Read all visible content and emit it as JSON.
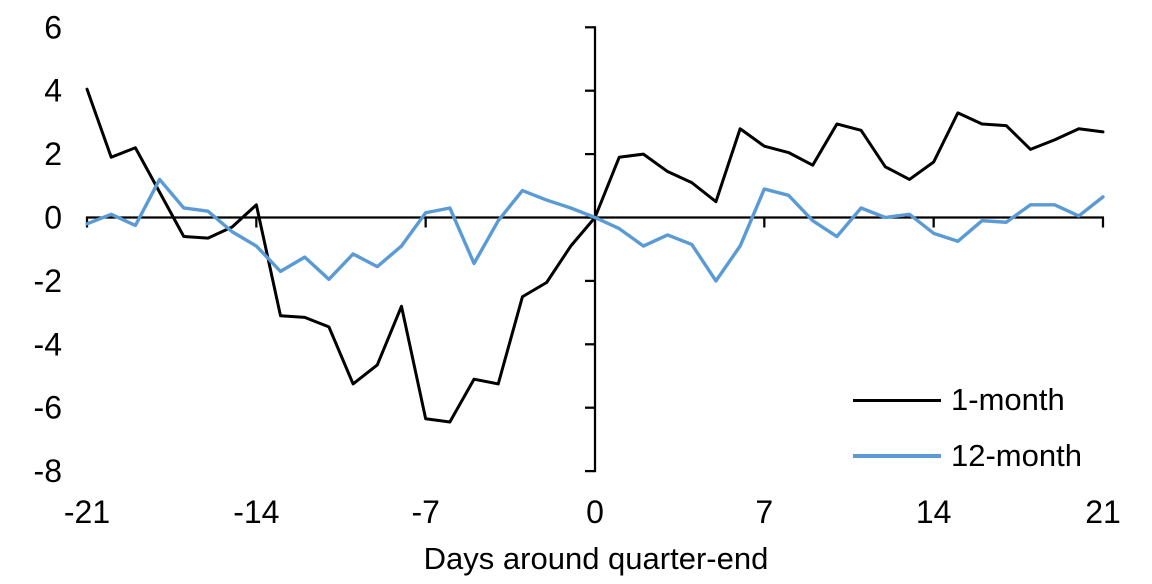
{
  "chart_data": {
    "type": "line",
    "xlabel": "Days around quarter-end",
    "ylabel": "",
    "xlim": [
      -21,
      21
    ],
    "ylim": [
      -8,
      6
    ],
    "x_ticks": [
      -21,
      -14,
      -7,
      0,
      7,
      14,
      21
    ],
    "y_ticks": [
      6,
      4,
      2,
      0,
      -2,
      -4,
      -6,
      -8
    ],
    "grid": false,
    "legend_position": "bottom-right",
    "axis_color": "#000000",
    "x": [
      -21,
      -20,
      -19,
      -18,
      -17,
      -16,
      -15,
      -14,
      -13,
      -12,
      -11,
      -10,
      -9,
      -8,
      -7,
      -6,
      -5,
      -4,
      -3,
      -2,
      -1,
      0,
      1,
      2,
      3,
      4,
      5,
      6,
      7,
      8,
      9,
      10,
      11,
      12,
      13,
      14,
      15,
      16,
      17,
      18,
      19,
      20,
      21
    ],
    "series": [
      {
        "name": "1-month",
        "color": "#000000",
        "stroke_width": 3,
        "values": [
          4.05,
          1.9,
          2.2,
          0.8,
          -0.6,
          -0.65,
          -0.3,
          0.4,
          -3.1,
          -3.15,
          -3.45,
          -5.25,
          -4.65,
          -2.8,
          -6.35,
          -6.45,
          -5.1,
          -5.25,
          -2.5,
          -2.05,
          -0.9,
          0,
          1.9,
          2.0,
          1.45,
          1.1,
          0.5,
          2.8,
          2.25,
          2.05,
          1.65,
          2.95,
          2.75,
          1.6,
          1.2,
          1.75,
          3.3,
          2.95,
          2.9,
          2.15,
          2.45,
          2.8,
          2.7
        ]
      },
      {
        "name": "12-month",
        "color": "#5B9BD5",
        "stroke_width": 3.4,
        "values": [
          -0.2,
          0.1,
          -0.25,
          1.2,
          0.3,
          0.2,
          -0.45,
          -0.9,
          -1.7,
          -1.25,
          -1.95,
          -1.15,
          -1.55,
          -0.9,
          0.15,
          0.3,
          -1.45,
          -0.1,
          0.85,
          0.55,
          0.3,
          0,
          -0.35,
          -0.9,
          -0.55,
          -0.85,
          -2.0,
          -0.9,
          0.9,
          0.7,
          -0.1,
          -0.6,
          0.3,
          0,
          0.1,
          -0.5,
          -0.75,
          -0.1,
          -0.15,
          0.4,
          0.4,
          0.05,
          0.65
        ]
      }
    ]
  }
}
